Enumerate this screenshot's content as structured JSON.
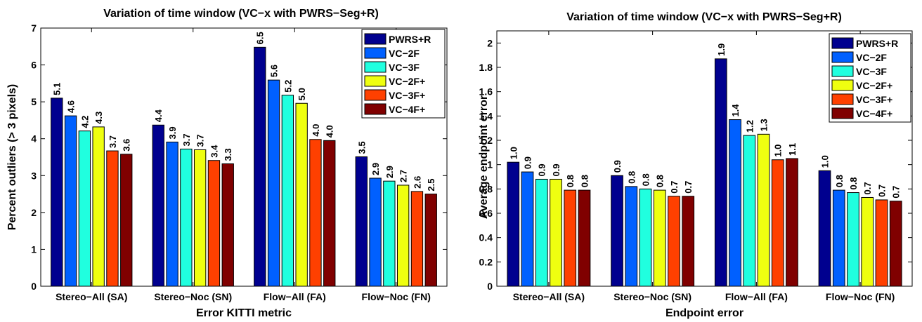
{
  "chart_data": [
    {
      "type": "bar",
      "title": "Variation of time window (VC−x with PWRS−Seg+R)",
      "xlabel": "Error KITTI metric",
      "ylabel": "Percent outliers (> 3 pixels)",
      "ylim": [
        0,
        7
      ],
      "yticks": [
        "0",
        "1",
        "2",
        "3",
        "4",
        "5",
        "6",
        "7"
      ],
      "categories": [
        "Stereo−All (SA)",
        "Stereo−Noc (SN)",
        "Flow−All (FA)",
        "Flow−Noc (FN)"
      ],
      "legend_position": "top-right",
      "series": [
        {
          "name": "PWRS+R",
          "color": "#00008f",
          "values": [
            5.1,
            4.37,
            6.48,
            3.51
          ],
          "labels": [
            "5.1",
            "4.4",
            "6.5",
            "3.5"
          ]
        },
        {
          "name": "VC−2F",
          "color": "#0060ff",
          "values": [
            4.62,
            3.91,
            5.59,
            2.93
          ],
          "labels": [
            "4.6",
            "3.9",
            "5.6",
            "2.9"
          ]
        },
        {
          "name": "VC−3F",
          "color": "#20ffdf",
          "values": [
            4.21,
            3.72,
            5.18,
            2.85
          ],
          "labels": [
            "4.2",
            "3.7",
            "5.2",
            "2.9"
          ]
        },
        {
          "name": "VC−2F+",
          "color": "#efff10",
          "values": [
            4.32,
            3.7,
            4.96,
            2.74
          ],
          "labels": [
            "4.3",
            "3.7",
            "5.0",
            "2.7"
          ]
        },
        {
          "name": "VC−3F+",
          "color": "#ff4000",
          "values": [
            3.67,
            3.41,
            3.98,
            2.57
          ],
          "labels": [
            "3.7",
            "3.4",
            "4.0",
            "2.6"
          ]
        },
        {
          "name": "VC−4F+",
          "color": "#800000",
          "values": [
            3.58,
            3.32,
            3.95,
            2.5
          ],
          "labels": [
            "3.6",
            "3.3",
            "4.0",
            "2.5"
          ]
        }
      ]
    },
    {
      "type": "bar",
      "title": "Variation of time window (VC−x with PWRS−Seg+R)",
      "xlabel": "Endpoint error",
      "ylabel": "Average endpoint error",
      "ylim": [
        0,
        2.1
      ],
      "yticks": [
        "0",
        "0.2",
        "0.4",
        "0.6",
        "0.8",
        "1",
        "1.2",
        "1.4",
        "1.6",
        "1.8",
        "2"
      ],
      "categories": [
        "Stereo−All (SA)",
        "Stereo−Noc (SN)",
        "Flow−All (FA)",
        "Flow−Noc (FN)"
      ],
      "legend_position": "top-right",
      "series": [
        {
          "name": "PWRS+R",
          "color": "#00008f",
          "values": [
            1.02,
            0.91,
            1.87,
            0.95
          ],
          "labels": [
            "1.0",
            "0.9",
            "1.9",
            "1.0"
          ]
        },
        {
          "name": "VC−2F",
          "color": "#0060ff",
          "values": [
            0.94,
            0.82,
            1.37,
            0.79
          ],
          "labels": [
            "0.9",
            "0.8",
            "1.4",
            "0.8"
          ]
        },
        {
          "name": "VC−3F",
          "color": "#20ffdf",
          "values": [
            0.88,
            0.8,
            1.24,
            0.77
          ],
          "labels": [
            "0.9",
            "0.8",
            "1.2",
            "0.8"
          ]
        },
        {
          "name": "VC−2F+",
          "color": "#efff10",
          "values": [
            0.88,
            0.79,
            1.25,
            0.73
          ],
          "labels": [
            "0.9",
            "0.8",
            "1.3",
            "0.7"
          ]
        },
        {
          "name": "VC−3F+",
          "color": "#ff4000",
          "values": [
            0.79,
            0.74,
            1.04,
            0.71
          ],
          "labels": [
            "0.8",
            "0.7",
            "1.0",
            "0.7"
          ]
        },
        {
          "name": "VC−4F+",
          "color": "#800000",
          "values": [
            0.79,
            0.74,
            1.05,
            0.7
          ],
          "labels": [
            "0.8",
            "0.7",
            "1.1",
            "0.7"
          ]
        }
      ]
    }
  ]
}
